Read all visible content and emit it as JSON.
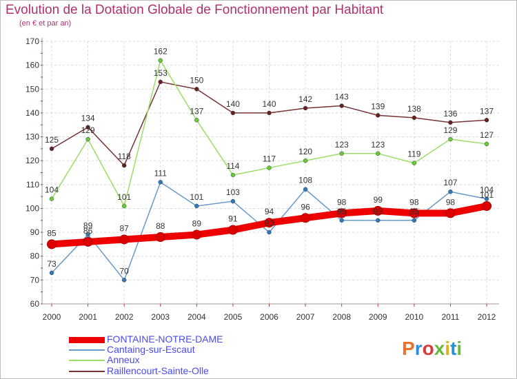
{
  "title": "Evolution de la Dotation Globale de Fonctionnement par Habitant",
  "subtitle": "(en € et par an)",
  "brand": {
    "text": "Proxiti",
    "colors": [
      "#e8732a",
      "#2a8fd8",
      "#d83a3a",
      "#6bb83a",
      "#e0b020",
      "#2a8fd8",
      "#6bb83a"
    ]
  },
  "chart_data": {
    "type": "line",
    "title": "Evolution de la Dotation Globale de Fonctionnement par Habitant",
    "subtitle": "(en € et par an)",
    "xlabel": "",
    "ylabel": "",
    "x": [
      "2000",
      "2001",
      "2002",
      "2003",
      "2004",
      "2005",
      "2006",
      "2007",
      "2008",
      "2009",
      "2010",
      "2011",
      "2012"
    ],
    "ylim": [
      60,
      170
    ],
    "yticks": [
      60,
      70,
      80,
      90,
      100,
      110,
      120,
      130,
      140,
      150,
      160,
      170
    ],
    "grid": true,
    "legend_position": "bottom-left",
    "series": [
      {
        "name": "FONTAINE-NOTRE-DAME",
        "color": "#ee0000",
        "marker": "#cc0000",
        "values": [
          85,
          86,
          87,
          88,
          89,
          91,
          94,
          96,
          98,
          99,
          98,
          98,
          101
        ]
      },
      {
        "name": "Cantaing-sur-Escaut",
        "color": "#6699cc",
        "marker": "#3377bb",
        "values": [
          73,
          89,
          70,
          111,
          101,
          103,
          90,
          108,
          95,
          95,
          95,
          107,
          104
        ]
      },
      {
        "name": "Anneux",
        "color": "#99dd66",
        "marker": "#66cc33",
        "values": [
          104,
          129,
          101,
          162,
          137,
          114,
          117,
          120,
          123,
          123,
          119,
          129,
          127
        ]
      },
      {
        "name": "Raillencourt-Sainte-Olle",
        "color": "#773333",
        "marker": "#662222",
        "values": [
          125,
          134,
          118,
          153,
          150,
          140,
          140,
          142,
          143,
          139,
          138,
          136,
          137
        ]
      }
    ]
  }
}
